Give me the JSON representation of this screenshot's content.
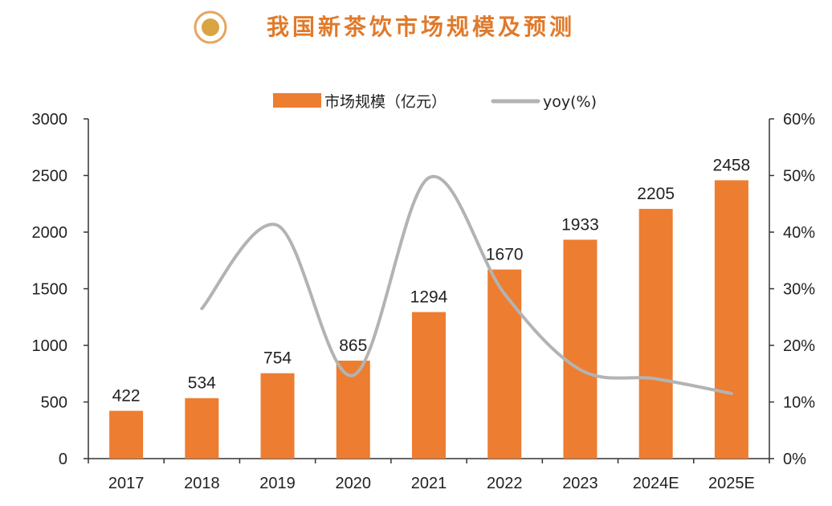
{
  "title": "我国新茶饮市场规模及预测",
  "colors": {
    "bar": "#ED7D31",
    "line": "#B3B3B3",
    "title": "#E07A2B",
    "icon_outer": "#E8A55C",
    "icon_inner": "#D9A441"
  },
  "chart_data": {
    "type": "bar",
    "categories": [
      "2017",
      "2018",
      "2019",
      "2020",
      "2021",
      "2022",
      "2023",
      "2024E",
      "2025E"
    ],
    "series": [
      {
        "name": "市场规模（亿元）",
        "type": "bar",
        "axis": "left",
        "values": [
          422,
          534,
          754,
          865,
          1294,
          1670,
          1933,
          2205,
          2458
        ]
      },
      {
        "name": "yoy(%)",
        "type": "line",
        "axis": "right",
        "values": [
          null,
          26.5,
          41.2,
          14.7,
          49.6,
          29.1,
          15.7,
          14.1,
          11.5
        ]
      }
    ],
    "data_labels": [
      "422",
      "534",
      "754",
      "865",
      "1294",
      "1670",
      "1933",
      "2205",
      "2458"
    ],
    "left_axis": {
      "ylim": [
        0,
        3000
      ],
      "ticks": [
        "0",
        "500",
        "1000",
        "1500",
        "2000",
        "2500",
        "3000"
      ]
    },
    "right_axis": {
      "ylim": [
        0,
        60
      ],
      "ticks": [
        "0%",
        "10%",
        "20%",
        "30%",
        "40%",
        "50%",
        "60%"
      ]
    },
    "legend_position": "top-center",
    "grid": false
  }
}
